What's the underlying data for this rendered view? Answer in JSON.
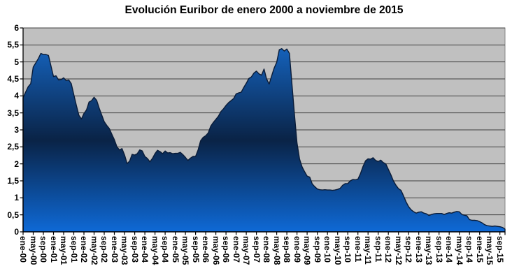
{
  "chart_data": {
    "type": "area",
    "title": "Evolución Euribor de enero 2000 a noviembre de 2015",
    "series_name": "Euribor",
    "frequency": "monthly",
    "x_start": "ene-00",
    "x_end": "nov-15",
    "ylim": [
      0,
      6
    ],
    "y_step": 0.5,
    "grid": true,
    "legend": false,
    "y_tick_labels": [
      "6",
      "5,5",
      "5",
      "4,5",
      "4",
      "3,5",
      "3",
      "2,5",
      "2",
      "1,5",
      "1",
      "0,5",
      "0"
    ],
    "x_tick_labels": [
      "ene-00",
      "may-00",
      "sep-00",
      "ene-01",
      "may-01",
      "sep-01",
      "ene-02",
      "may-02",
      "sep-02",
      "ene-03",
      "may-03",
      "sep-03",
      "ene-04",
      "may-04",
      "sep-04",
      "ene-05",
      "may-05",
      "sep-05",
      "ene-06",
      "may-06",
      "sep-06",
      "ene-07",
      "may-07",
      "sep-07",
      "ene-08",
      "may-08",
      "sep-08",
      "ene-09",
      "may-09",
      "sep-09",
      "ene-10",
      "may-10",
      "sep-10",
      "ene-11",
      "may-11",
      "sep-11",
      "ene-12",
      "may-12",
      "sep-12",
      "ene-13",
      "may-13",
      "sep-13",
      "ene-14",
      "may-14",
      "sep-14",
      "ene-15",
      "may-15",
      "sep-15"
    ],
    "values": [
      3.95,
      4.11,
      4.27,
      4.36,
      4.85,
      4.97,
      5.1,
      5.25,
      5.22,
      5.22,
      5.19,
      4.88,
      4.57,
      4.59,
      4.47,
      4.48,
      4.53,
      4.45,
      4.47,
      4.36,
      4.04,
      3.72,
      3.43,
      3.32,
      3.48,
      3.59,
      3.82,
      3.86,
      3.96,
      3.87,
      3.64,
      3.44,
      3.24,
      3.13,
      3.04,
      2.87,
      2.71,
      2.5,
      2.41,
      2.45,
      2.26,
      2.01,
      2.08,
      2.28,
      2.26,
      2.3,
      2.41,
      2.38,
      2.22,
      2.16,
      2.06,
      2.16,
      2.3,
      2.4,
      2.36,
      2.3,
      2.38,
      2.32,
      2.33,
      2.3,
      2.31,
      2.31,
      2.34,
      2.27,
      2.19,
      2.1,
      2.17,
      2.22,
      2.22,
      2.41,
      2.68,
      2.78,
      2.83,
      2.91,
      3.11,
      3.22,
      3.31,
      3.4,
      3.54,
      3.62,
      3.72,
      3.8,
      3.86,
      3.92,
      4.06,
      4.09,
      4.11,
      4.25,
      4.37,
      4.51,
      4.56,
      4.67,
      4.73,
      4.65,
      4.61,
      4.79,
      4.5,
      4.35,
      4.59,
      4.82,
      4.99,
      5.36,
      5.39,
      5.32,
      5.38,
      5.25,
      4.35,
      3.45,
      2.62,
      2.14,
      1.91,
      1.77,
      1.64,
      1.61,
      1.41,
      1.33,
      1.26,
      1.24,
      1.23,
      1.24,
      1.23,
      1.23,
      1.22,
      1.23,
      1.25,
      1.28,
      1.37,
      1.42,
      1.42,
      1.5,
      1.54,
      1.53,
      1.55,
      1.71,
      1.92,
      2.09,
      2.15,
      2.14,
      2.18,
      2.1,
      2.07,
      2.11,
      2.04,
      2.0,
      1.84,
      1.68,
      1.5,
      1.37,
      1.27,
      1.22,
      1.06,
      0.88,
      0.74,
      0.65,
      0.59,
      0.55,
      0.58,
      0.59,
      0.55,
      0.53,
      0.48,
      0.51,
      0.53,
      0.54,
      0.54,
      0.54,
      0.51,
      0.54,
      0.56,
      0.55,
      0.58,
      0.6,
      0.59,
      0.51,
      0.49,
      0.47,
      0.36,
      0.34,
      0.34,
      0.33,
      0.3,
      0.26,
      0.21,
      0.18,
      0.17,
      0.16,
      0.17,
      0.16,
      0.15,
      0.13,
      0.08
    ],
    "colors": {
      "area_top": "#176fd4",
      "area_mid": "#0a2346",
      "area_bottom": "#0e69d6",
      "area_outline": "#0a1c38",
      "plot_bg": "#c0c0c0",
      "plot_border": "#868686",
      "gridline": "#404040",
      "axis": "#000000",
      "text": "#000000",
      "page_bg": "#ffffff"
    }
  }
}
